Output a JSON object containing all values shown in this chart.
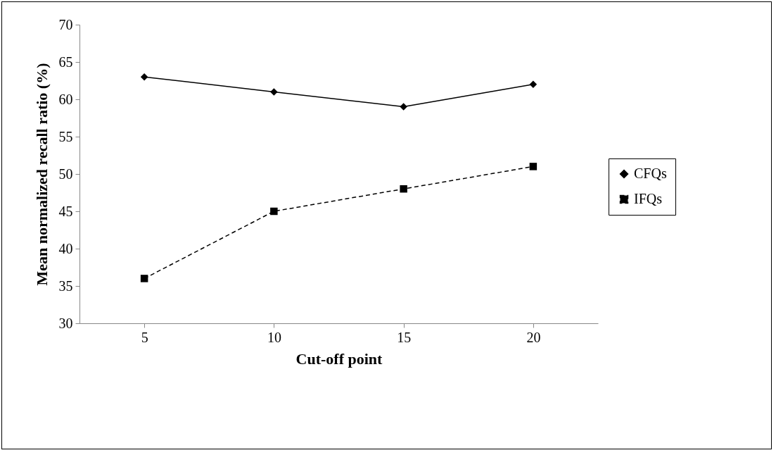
{
  "chart_data": {
    "type": "line",
    "xlabel": "Cut-off point",
    "ylabel": "Mean normalized recall ratio (%)",
    "categories": [
      "5",
      "10",
      "15",
      "20"
    ],
    "ylim": [
      30,
      70
    ],
    "yticks": [
      30,
      35,
      40,
      45,
      50,
      55,
      60,
      65,
      70
    ],
    "grid": false,
    "legend": "right",
    "series": [
      {
        "name": "CFQs",
        "color": "#000000",
        "marker": "diamond",
        "line_style": "solid",
        "values": [
          63,
          61,
          59,
          62
        ]
      },
      {
        "name": "IFQs",
        "color": "#000000",
        "marker": "square",
        "line_style": "dashed",
        "values": [
          36,
          45,
          48,
          51
        ]
      }
    ]
  }
}
